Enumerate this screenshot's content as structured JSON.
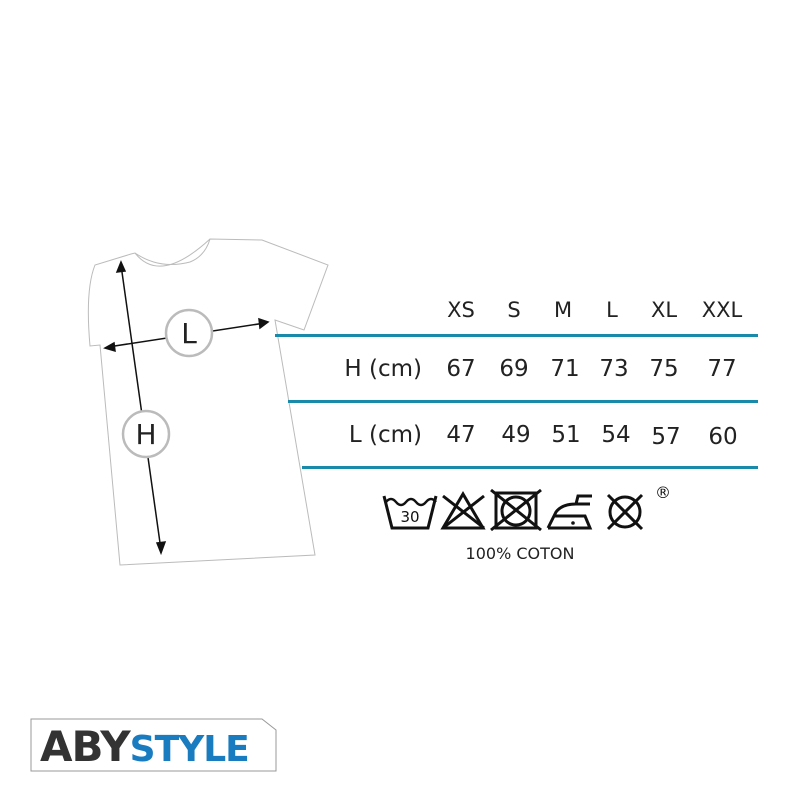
{
  "diagram": {
    "width_label": "L",
    "height_label": "H"
  },
  "size_table": {
    "sizes": [
      "XS",
      "S",
      "M",
      "L",
      "XL",
      "XXL"
    ],
    "rows": [
      {
        "label": "H (cm)",
        "values": [
          "67",
          "69",
          "71",
          "73",
          "75",
          "77"
        ]
      },
      {
        "label": "L (cm)",
        "values": [
          "47",
          "49",
          "51",
          "54",
          "57",
          "60"
        ]
      }
    ],
    "rule_color": "#1a8aaa"
  },
  "care": {
    "icons": [
      "wash-30-icon",
      "no-bleach-icon",
      "no-tumble-dry-icon",
      "iron-low-icon",
      "no-dry-clean-icon"
    ],
    "wash_temp": "30",
    "registered": "®",
    "material": "100% COTON"
  },
  "brand": {
    "part1": "ABY",
    "part2": "STYLE",
    "accent": "#1a7cc0"
  }
}
